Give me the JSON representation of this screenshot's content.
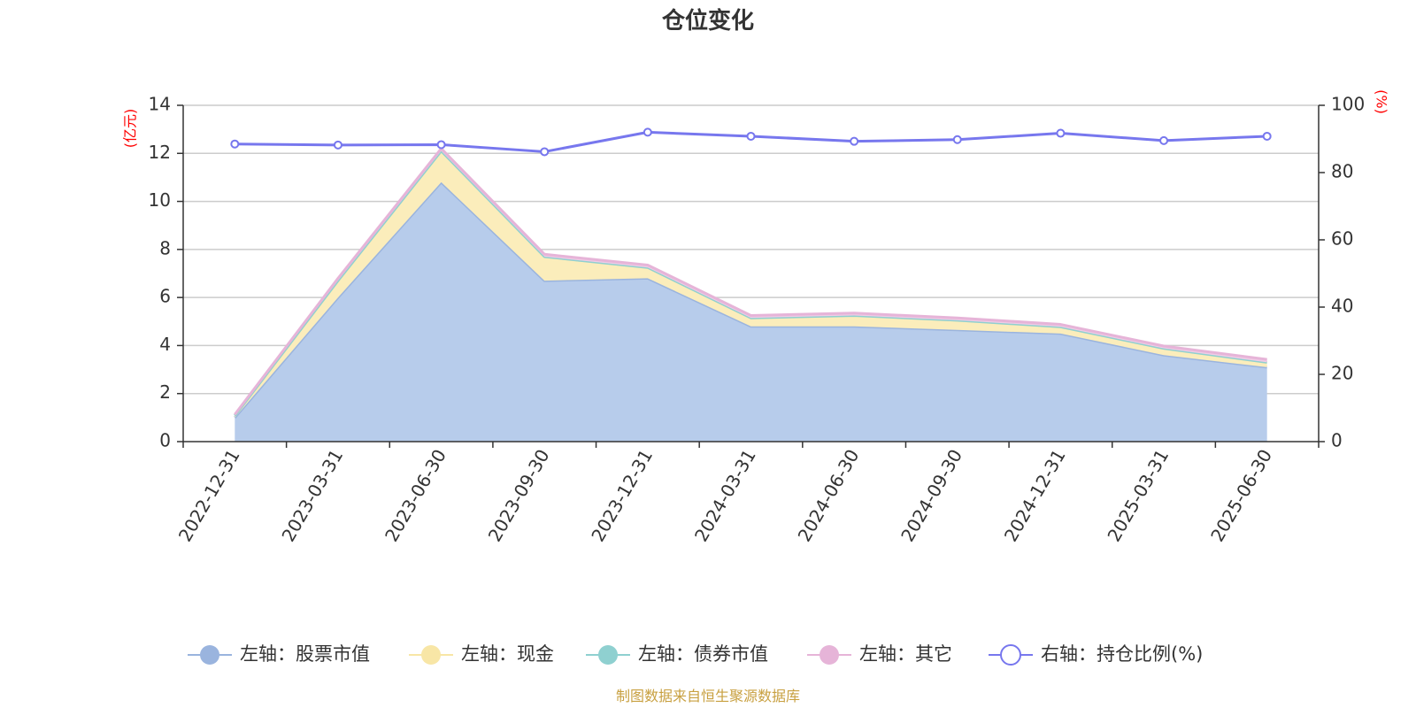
{
  "chart_data": {
    "type": "area",
    "title": "仓位变化",
    "left_unit": "(亿元)",
    "right_unit": "(%)",
    "categories": [
      "2022-12-31",
      "2023-03-31",
      "2023-06-30",
      "2023-09-30",
      "2023-12-31",
      "2024-03-31",
      "2024-06-30",
      "2024-09-30",
      "2024-12-31",
      "2025-03-31",
      "2025-06-30"
    ],
    "left_ylim": [
      0,
      14
    ],
    "left_ticks": [
      "0",
      "2",
      "4",
      "6",
      "8",
      "10",
      "12",
      "14"
    ],
    "right_ylim": [
      0,
      100
    ],
    "right_ticks": [
      "0",
      "20",
      "40",
      "60",
      "80",
      "100"
    ],
    "stacked_series": [
      {
        "name": "左轴：股票市值",
        "color": "#9ab4de",
        "fill": "#b7cceb",
        "values": [
          1.0,
          6.0,
          10.8,
          6.7,
          6.8,
          4.8,
          4.8,
          4.65,
          4.5,
          3.6,
          3.1
        ]
      },
      {
        "name": "左轴：现金",
        "color": "#f8e6a6",
        "fill": "#fbedbb",
        "values": [
          0.08,
          0.7,
          1.3,
          1.0,
          0.45,
          0.35,
          0.45,
          0.4,
          0.28,
          0.28,
          0.2
        ]
      },
      {
        "name": "左轴：债券市值",
        "color": "#8fd0d0",
        "fill": "#a8dcdc",
        "values": [
          0,
          0,
          0,
          0,
          0,
          0,
          0,
          0,
          0,
          0,
          0
        ]
      },
      {
        "name": "左轴：其它",
        "color": "#e6b4d8",
        "fill": "#f0cce6",
        "values": [
          0.05,
          0.1,
          0.1,
          0.1,
          0.1,
          0.1,
          0.1,
          0.1,
          0.1,
          0.1,
          0.12
        ]
      }
    ],
    "line_series": {
      "name": "右轴：持仓比例(%)",
      "color": "#7777ee",
      "values": [
        88.5,
        88.2,
        88.3,
        86.2,
        92.0,
        90.8,
        89.3,
        89.8,
        91.7,
        89.5,
        90.8
      ]
    },
    "grid": true,
    "legend_position": "bottom"
  },
  "source_note": "制图数据来自恒生聚源数据库"
}
